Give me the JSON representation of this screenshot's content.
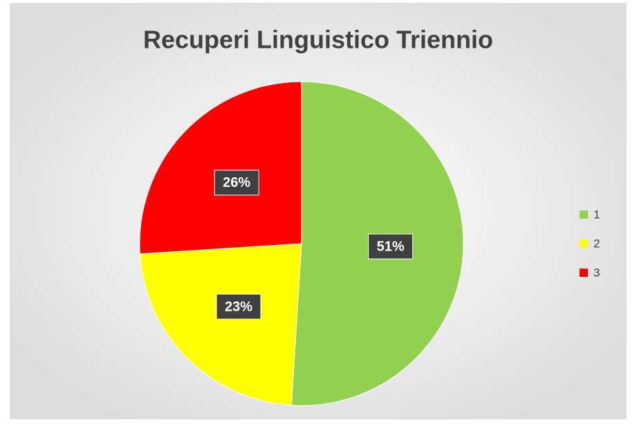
{
  "chart_data": {
    "type": "pie",
    "title": "Recuperi Linguistico Triennio",
    "categories": [
      "1",
      "2",
      "3"
    ],
    "values": [
      51,
      23,
      26
    ],
    "value_labels": [
      "51%",
      "23%",
      "26%"
    ],
    "colors": [
      "#92d050",
      "#ffff00",
      "#ff0000"
    ],
    "legend": "right"
  }
}
